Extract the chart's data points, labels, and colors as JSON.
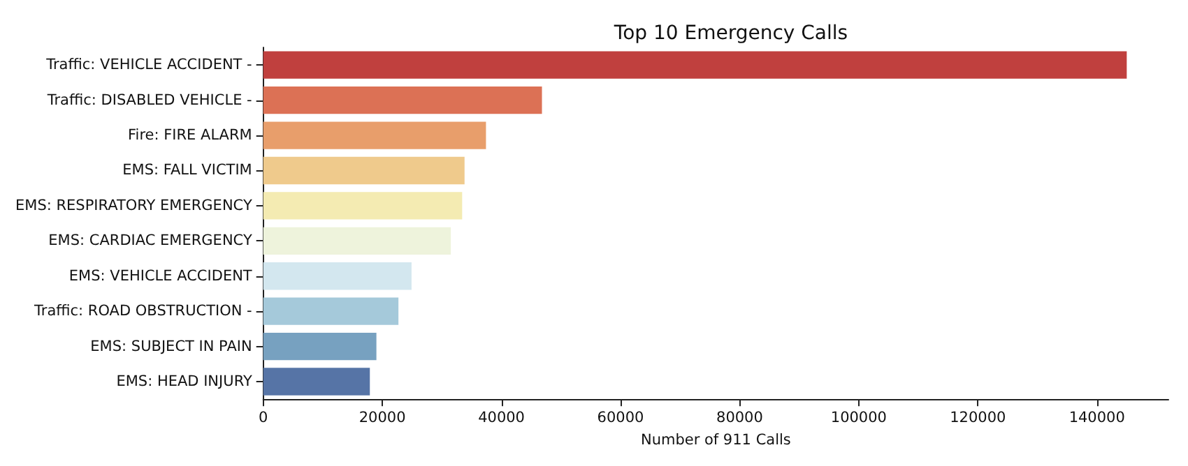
{
  "chart_data": {
    "type": "bar",
    "orientation": "horizontal",
    "title": "Top 10 Emergency Calls",
    "xlabel": "Number of 911 Calls",
    "categories": [
      "Traffic: VEHICLE ACCIDENT -",
      "Traffic: DISABLED VEHICLE -",
      "Fire: FIRE ALARM",
      "EMS: FALL VICTIM",
      "EMS: RESPIRATORY EMERGENCY",
      "EMS: CARDIAC EMERGENCY",
      "EMS: VEHICLE ACCIDENT",
      "Traffic: ROAD OBSTRUCTION -",
      "EMS: SUBJECT IN PAIN",
      "EMS: HEAD INJURY"
    ],
    "values": [
      145000,
      46800,
      37400,
      33800,
      33400,
      31500,
      24900,
      22700,
      19000,
      17900
    ],
    "colors": [
      "#c0403e",
      "#dc7155",
      "#e89e6b",
      "#efca8c",
      "#f4ebb2",
      "#eef3dc",
      "#d3e7ef",
      "#a5c9da",
      "#77a1c0",
      "#5674a6"
    ],
    "xlim": [
      0,
      152000
    ],
    "xticks": [
      0,
      20000,
      40000,
      60000,
      80000,
      100000,
      120000,
      140000
    ],
    "grid": false
  }
}
